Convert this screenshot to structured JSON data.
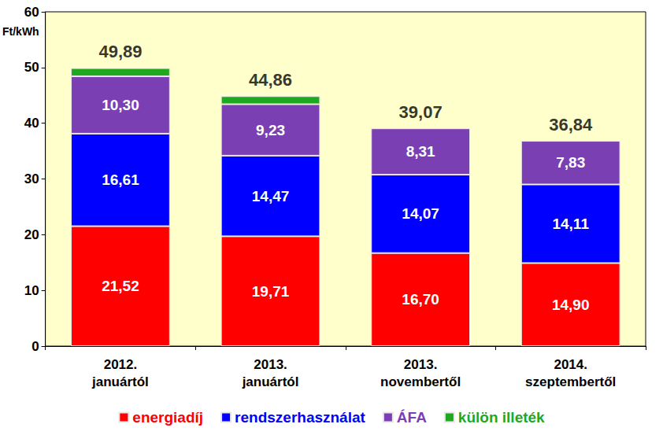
{
  "chart_data": {
    "type": "bar",
    "stacked": true,
    "grid": false,
    "legend": "bottom",
    "y_label": "Ft/kWh",
    "categories": [
      "2012.\njanuártól",
      "2013.\njanuártól",
      "2013.\nnovembertől",
      "2014.\nszeptembertől"
    ],
    "ylim": [
      0,
      60
    ],
    "yticks": [
      0,
      10,
      20,
      30,
      40,
      50,
      60
    ],
    "series": [
      {
        "name": "energiadíj",
        "color": "#ff0000",
        "data_labels": true,
        "values": [
          21.52,
          19.71,
          16.7,
          14.9
        ],
        "value_labels": [
          "21,52",
          "19,71",
          "16,70",
          "14,90"
        ]
      },
      {
        "name": "rendszerhasználat",
        "color": "#0000ff",
        "data_labels": true,
        "values": [
          16.61,
          14.47,
          14.07,
          14.11
        ],
        "value_labels": [
          "16,61",
          "14,47",
          "14,07",
          "14,11"
        ]
      },
      {
        "name": "ÁFA",
        "color": "#7b3fb4",
        "data_labels": true,
        "values": [
          10.3,
          9.23,
          8.31,
          7.83
        ],
        "value_labels": [
          "10,30",
          "9,23",
          "8,31",
          "7,83"
        ]
      },
      {
        "name": "külön illeték",
        "color": "#1fa81f",
        "data_labels": false,
        "values": [
          1.46,
          1.45,
          null,
          null
        ]
      }
    ],
    "totals": [
      49.89,
      44.86,
      39.07,
      36.84
    ],
    "total_labels": [
      "49,89",
      "44,86",
      "39,07",
      "36,84"
    ]
  }
}
